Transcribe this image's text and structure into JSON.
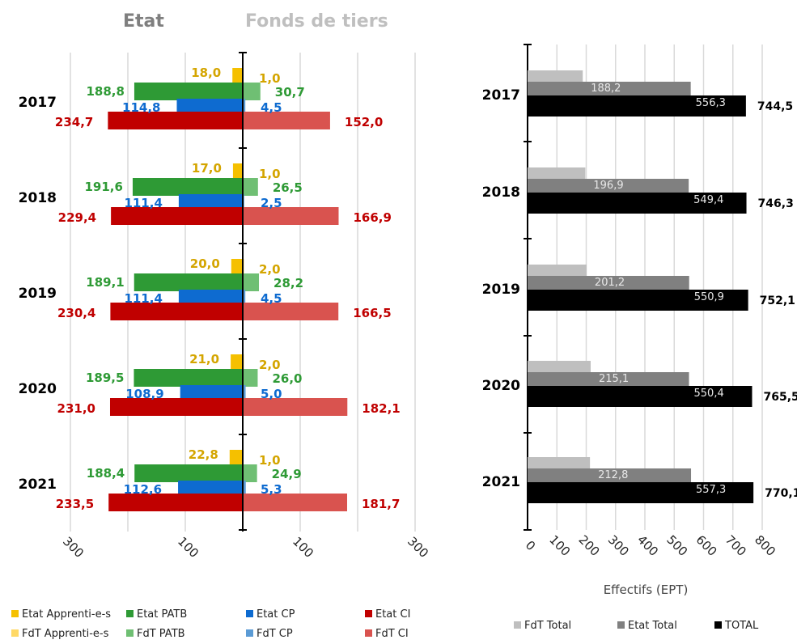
{
  "chart_data": [
    {
      "type": "bar",
      "orientation": "horizontal",
      "layout": "diverging",
      "left_header": "Etat",
      "right_header": "Fonds de tiers",
      "categories": [
        "2017",
        "2018",
        "2019",
        "2020",
        "2021"
      ],
      "x_ticks": [
        "300",
        "100",
        "100",
        "300"
      ],
      "xlim": [
        -300,
        300
      ],
      "series": [
        {
          "name": "Etat Apprenti-e-s",
          "side": "left",
          "color": "#F5C000",
          "label_color": "#D4A500",
          "values": [
            18.0,
            17.0,
            20.0,
            21.0,
            22.8
          ],
          "labels": [
            "18,0",
            "17,0",
            "20,0",
            "21,0",
            "22,8"
          ]
        },
        {
          "name": "Etat PATB",
          "side": "left",
          "color": "#2E9A35",
          "label_color": "#2E9A35",
          "values": [
            188.8,
            191.6,
            189.1,
            189.5,
            188.4
          ],
          "labels": [
            "188,8",
            "191,6",
            "189,1",
            "189,5",
            "188,4"
          ]
        },
        {
          "name": "Etat CP",
          "side": "left",
          "color": "#0E6BD0",
          "label_color": "#0E6BD0",
          "values": [
            114.8,
            111.4,
            111.4,
            108.9,
            112.6
          ],
          "labels": [
            "114,8",
            "111,4",
            "111,4",
            "108,9",
            "112,6"
          ]
        },
        {
          "name": "Etat CI",
          "side": "left",
          "color": "#C00000",
          "label_color": "#C00000",
          "values": [
            234.7,
            229.4,
            230.4,
            231.0,
            233.5
          ],
          "labels": [
            "234,7",
            "229,4",
            "230,4",
            "231,0",
            "233,5"
          ]
        },
        {
          "name": "FdT Apprenti-e-s",
          "side": "right",
          "color": "#FFD966",
          "label_color": "#D4A500",
          "values": [
            1.0,
            1.0,
            2.0,
            2.0,
            1.0
          ],
          "labels": [
            "1,0",
            "1,0",
            "2,0",
            "2,0",
            "1,0"
          ]
        },
        {
          "name": "FdT PATB",
          "side": "right",
          "color": "#6FBF73",
          "label_color": "#2E9A35",
          "values": [
            30.7,
            26.5,
            28.2,
            26.0,
            24.9
          ],
          "labels": [
            "30,7",
            "26,5",
            "28,2",
            "26,0",
            "24,9"
          ]
        },
        {
          "name": "FdT CP",
          "side": "right",
          "color": "#5B9BD5",
          "label_color": "#0E6BD0",
          "values": [
            4.5,
            2.5,
            4.5,
            5.0,
            5.3
          ],
          "labels": [
            "4,5",
            "2,5",
            "4,5",
            "5,0",
            "5,3"
          ]
        },
        {
          "name": "FdT CI",
          "side": "right",
          "color": "#D9534F",
          "label_color": "#C00000",
          "values": [
            152.0,
            166.9,
            166.5,
            182.1,
            181.7
          ],
          "labels": [
            "152,0",
            "166,9",
            "166,5",
            "182,1",
            "181,7"
          ]
        }
      ],
      "grid": true,
      "legend_position": "bottom"
    },
    {
      "type": "bar",
      "orientation": "horizontal",
      "categories": [
        "2017",
        "2018",
        "2019",
        "2020",
        "2021"
      ],
      "xlabel": "Effectifs (EPT)",
      "x_ticks": [
        "0",
        "100",
        "200",
        "300",
        "400",
        "500",
        "600",
        "700",
        "800"
      ],
      "xlim": [
        0,
        800
      ],
      "series": [
        {
          "name": "FdT Total",
          "color": "#BFBFBF",
          "values": [
            188.2,
            196.9,
            201.2,
            215.1,
            212.8
          ],
          "labels": [
            "188,2",
            "196,9",
            "201,2",
            "215,1",
            "212,8"
          ]
        },
        {
          "name": "Etat Total",
          "color": "#808080",
          "values": [
            556.3,
            549.4,
            550.9,
            550.4,
            557.3
          ],
          "labels": [
            "556,3",
            "549,4",
            "550,9",
            "550,4",
            "557,3"
          ]
        },
        {
          "name": "TOTAL",
          "color": "#000000",
          "values": [
            744.5,
            746.3,
            752.1,
            765.5,
            770.1
          ],
          "labels": [
            "744,5",
            "746,3",
            "752,1",
            "765,5",
            "770,1"
          ]
        }
      ],
      "grid": true,
      "legend_position": "bottom"
    }
  ]
}
